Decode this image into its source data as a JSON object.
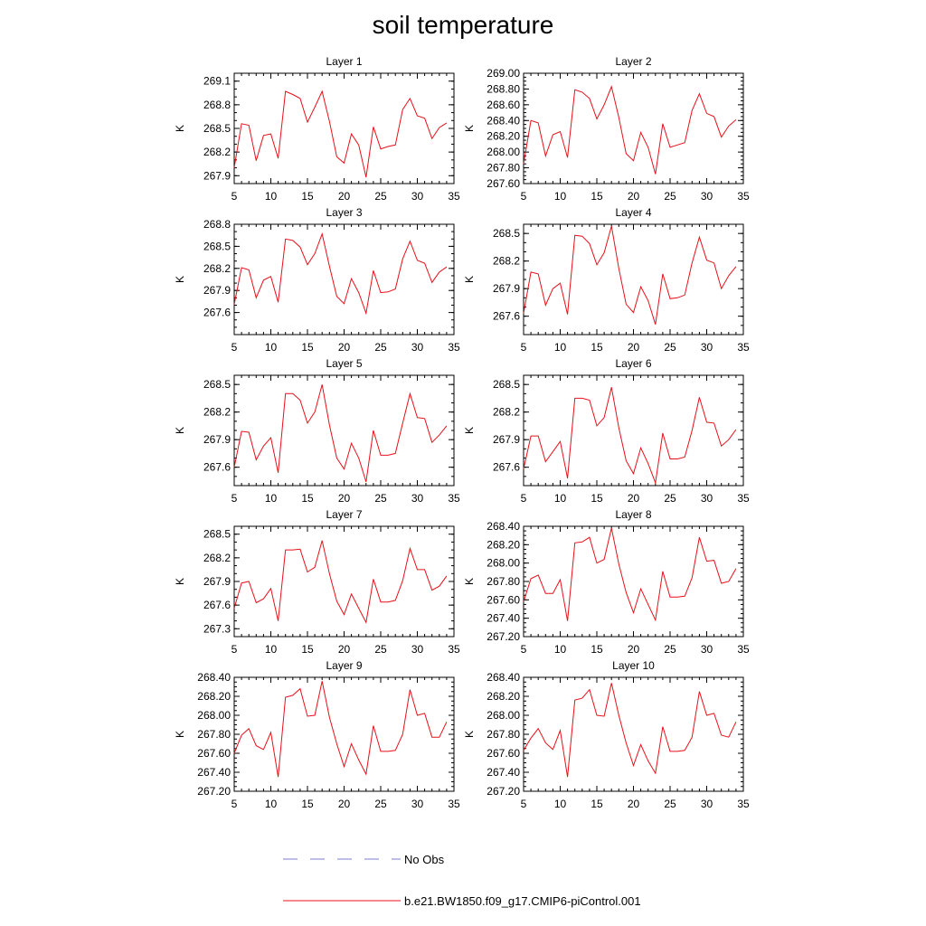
{
  "title": "soil temperature",
  "colors": {
    "model": "#e8101a",
    "obs": "#7b7fd0",
    "axis": "#000000"
  },
  "legend": [
    {
      "label": "No Obs",
      "style": "dashed",
      "color": "#7b7fd0"
    },
    {
      "label": "b.e21.BW1850.f09_g17.CMIP6-piControl.001",
      "style": "solid",
      "color": "#e8101a"
    }
  ],
  "chart_data": [
    {
      "type": "line",
      "title": "Layer 1",
      "xlabel": "",
      "ylabel": "K",
      "xlim": [
        5,
        35
      ],
      "ylim": [
        267.8,
        269.2
      ],
      "xticks": [
        "5",
        "10",
        "15",
        "20",
        "25",
        "30",
        "35"
      ],
      "yticks": [
        267.9,
        268.2,
        268.5,
        268.8,
        269.1
      ],
      "ytick_labels": [
        "267.9",
        "268.2",
        "268.5",
        "268.8",
        "269.1"
      ],
      "series": [
        {
          "x": [
            5,
            6,
            7,
            8,
            9,
            10,
            11,
            12,
            13,
            14,
            15,
            16,
            17,
            18,
            19,
            20,
            21,
            22,
            23,
            24,
            25,
            26,
            27,
            28,
            29,
            30,
            31,
            32,
            33,
            34
          ],
          "values": [
            268.0,
            268.56,
            268.54,
            268.09,
            268.41,
            268.43,
            268.12,
            268.97,
            268.93,
            268.88,
            268.58,
            268.77,
            268.97,
            268.59,
            268.14,
            268.06,
            268.43,
            268.29,
            267.88,
            268.52,
            268.24,
            268.27,
            268.29,
            268.74,
            268.88,
            268.66,
            268.63,
            268.37,
            268.51,
            268.57
          ]
        }
      ]
    },
    {
      "type": "line",
      "title": "Layer 2",
      "xlabel": "",
      "ylabel": "K",
      "xlim": [
        5,
        35
      ],
      "ylim": [
        267.6,
        269.0
      ],
      "xticks": [
        "5",
        "10",
        "15",
        "20",
        "25",
        "30",
        "35"
      ],
      "yticks": [
        267.6,
        267.8,
        268.0,
        268.2,
        268.4,
        268.6,
        268.8,
        269.0
      ],
      "ytick_labels": [
        "267.60",
        "267.80",
        "268.00",
        "268.20",
        "268.40",
        "268.60",
        "268.80",
        "269.00"
      ],
      "series": [
        {
          "x": [
            5,
            6,
            7,
            8,
            9,
            10,
            11,
            12,
            13,
            14,
            15,
            16,
            17,
            18,
            19,
            20,
            21,
            22,
            23,
            24,
            25,
            26,
            27,
            28,
            29,
            30,
            31,
            32,
            33,
            34
          ],
          "values": [
            267.85,
            268.4,
            268.37,
            267.95,
            268.22,
            268.26,
            267.93,
            268.79,
            268.76,
            268.68,
            268.42,
            268.6,
            268.83,
            268.44,
            267.98,
            267.89,
            268.25,
            268.06,
            267.72,
            268.36,
            268.06,
            268.09,
            268.12,
            268.53,
            268.74,
            268.49,
            268.45,
            268.19,
            268.33,
            268.41
          ]
        }
      ]
    },
    {
      "type": "line",
      "title": "Layer 3",
      "xlabel": "",
      "ylabel": "K",
      "xlim": [
        5,
        35
      ],
      "ylim": [
        267.3,
        268.8
      ],
      "xticks": [
        "5",
        "10",
        "15",
        "20",
        "25",
        "30",
        "35"
      ],
      "yticks": [
        267.6,
        267.9,
        268.2,
        268.5,
        268.8
      ],
      "ytick_labels": [
        "267.6",
        "267.9",
        "268.2",
        "268.5",
        "268.8"
      ],
      "series": [
        {
          "x": [
            5,
            6,
            7,
            8,
            9,
            10,
            11,
            12,
            13,
            14,
            15,
            16,
            17,
            18,
            19,
            20,
            21,
            22,
            23,
            24,
            25,
            26,
            27,
            28,
            29,
            30,
            31,
            32,
            33,
            34
          ],
          "values": [
            267.71,
            268.21,
            268.18,
            267.8,
            268.04,
            268.09,
            267.74,
            268.6,
            268.58,
            268.49,
            268.25,
            268.4,
            268.67,
            268.23,
            267.82,
            267.72,
            268.06,
            267.87,
            267.59,
            268.17,
            267.87,
            267.88,
            267.92,
            268.33,
            268.57,
            268.31,
            268.27,
            268.01,
            268.15,
            268.22
          ]
        }
      ]
    },
    {
      "type": "line",
      "title": "Layer 4",
      "xlabel": "",
      "ylabel": "K",
      "xlim": [
        5,
        35
      ],
      "ylim": [
        267.4,
        268.6
      ],
      "xticks": [
        "5",
        "10",
        "15",
        "20",
        "25",
        "30",
        "35"
      ],
      "yticks": [
        267.6,
        267.9,
        268.2,
        268.5
      ],
      "ytick_labels": [
        "267.6",
        "267.9",
        "268.2",
        "268.5"
      ],
      "series": [
        {
          "x": [
            5,
            6,
            7,
            8,
            9,
            10,
            11,
            12,
            13,
            14,
            15,
            16,
            17,
            18,
            19,
            20,
            21,
            22,
            23,
            24,
            25,
            26,
            27,
            28,
            29,
            30,
            31,
            32,
            33,
            34
          ],
          "values": [
            267.63,
            268.08,
            268.06,
            267.72,
            267.9,
            267.96,
            267.62,
            268.48,
            268.47,
            268.39,
            268.16,
            268.29,
            268.58,
            268.12,
            267.73,
            267.64,
            267.92,
            267.77,
            267.51,
            268.06,
            267.79,
            267.8,
            267.83,
            268.18,
            268.46,
            268.21,
            268.18,
            267.9,
            268.04,
            268.14
          ]
        }
      ]
    },
    {
      "type": "line",
      "title": "Layer 5",
      "xlabel": "",
      "ylabel": "K",
      "xlim": [
        5,
        35
      ],
      "ylim": [
        267.4,
        268.6
      ],
      "xticks": [
        "5",
        "10",
        "15",
        "20",
        "25",
        "30",
        "35"
      ],
      "yticks": [
        267.6,
        267.9,
        268.2,
        268.5
      ],
      "ytick_labels": [
        "267.6",
        "267.9",
        "268.2",
        "268.5"
      ],
      "series": [
        {
          "x": [
            5,
            6,
            7,
            8,
            9,
            10,
            11,
            12,
            13,
            14,
            15,
            16,
            17,
            18,
            19,
            20,
            21,
            22,
            23,
            24,
            25,
            26,
            27,
            28,
            29,
            30,
            31,
            32,
            33,
            34
          ],
          "values": [
            267.6,
            267.99,
            267.98,
            267.68,
            267.83,
            267.92,
            267.54,
            268.4,
            268.4,
            268.33,
            268.08,
            268.2,
            268.5,
            268.06,
            267.7,
            267.58,
            267.86,
            267.7,
            267.44,
            268.0,
            267.73,
            267.73,
            267.75,
            268.08,
            268.4,
            268.14,
            268.13,
            267.87,
            267.95,
            268.05
          ]
        }
      ]
    },
    {
      "type": "line",
      "title": "Layer 6",
      "xlabel": "",
      "ylabel": "K",
      "xlim": [
        5,
        35
      ],
      "ylim": [
        267.4,
        268.6
      ],
      "xticks": [
        "5",
        "10",
        "15",
        "20",
        "25",
        "30",
        "35"
      ],
      "yticks": [
        267.6,
        267.9,
        268.2,
        268.5
      ],
      "ytick_labels": [
        "267.6",
        "267.9",
        "268.2",
        "268.5"
      ],
      "series": [
        {
          "x": [
            5,
            6,
            7,
            8,
            9,
            10,
            11,
            12,
            13,
            14,
            15,
            16,
            17,
            18,
            19,
            20,
            21,
            22,
            23,
            24,
            25,
            26,
            27,
            28,
            29,
            30,
            31,
            32,
            33,
            34
          ],
          "values": [
            267.58,
            267.94,
            267.94,
            267.66,
            267.77,
            267.88,
            267.48,
            268.35,
            268.35,
            268.33,
            268.05,
            268.14,
            268.47,
            268.03,
            267.67,
            267.53,
            267.81,
            267.64,
            267.43,
            267.97,
            267.69,
            267.69,
            267.71,
            268.0,
            268.36,
            268.09,
            268.08,
            267.83,
            267.9,
            268.01
          ]
        }
      ]
    },
    {
      "type": "line",
      "title": "Layer 7",
      "xlabel": "",
      "ylabel": "K",
      "xlim": [
        5,
        35
      ],
      "ylim": [
        267.2,
        268.6
      ],
      "xticks": [
        "5",
        "10",
        "15",
        "20",
        "25",
        "30",
        "35"
      ],
      "yticks": [
        267.3,
        267.6,
        267.9,
        268.2,
        268.5
      ],
      "ytick_labels": [
        "267.3",
        "267.6",
        "267.9",
        "268.2",
        "268.5"
      ],
      "series": [
        {
          "x": [
            5,
            6,
            7,
            8,
            9,
            10,
            11,
            12,
            13,
            14,
            15,
            16,
            17,
            18,
            19,
            20,
            21,
            22,
            23,
            24,
            25,
            26,
            27,
            28,
            29,
            30,
            31,
            32,
            33,
            34
          ],
          "values": [
            267.56,
            267.88,
            267.9,
            267.63,
            267.68,
            267.81,
            267.4,
            268.3,
            268.3,
            268.31,
            268.02,
            268.08,
            268.42,
            268.0,
            267.65,
            267.48,
            267.74,
            267.56,
            267.38,
            267.93,
            267.64,
            267.64,
            267.66,
            267.91,
            268.32,
            268.05,
            268.05,
            267.79,
            267.84,
            267.97
          ]
        }
      ]
    },
    {
      "type": "line",
      "title": "Layer 8",
      "xlabel": "",
      "ylabel": "K",
      "xlim": [
        5,
        35
      ],
      "ylim": [
        267.2,
        268.4
      ],
      "xticks": [
        "5",
        "10",
        "15",
        "20",
        "25",
        "30",
        "35"
      ],
      "yticks": [
        267.2,
        267.4,
        267.6,
        267.8,
        268.0,
        268.2,
        268.4
      ],
      "ytick_labels": [
        "267.20",
        "267.40",
        "267.60",
        "267.80",
        "268.00",
        "268.20",
        "268.40"
      ],
      "series": [
        {
          "x": [
            5,
            6,
            7,
            8,
            9,
            10,
            11,
            12,
            13,
            14,
            15,
            16,
            17,
            18,
            19,
            20,
            21,
            22,
            23,
            24,
            25,
            26,
            27,
            28,
            29,
            30,
            31,
            32,
            33,
            34
          ],
          "values": [
            267.58,
            267.83,
            267.87,
            267.67,
            267.67,
            267.82,
            267.37,
            268.22,
            268.23,
            268.28,
            268.0,
            268.04,
            268.38,
            267.99,
            267.68,
            267.46,
            267.72,
            267.55,
            267.38,
            267.91,
            267.63,
            267.63,
            267.64,
            267.84,
            268.28,
            268.02,
            268.03,
            267.78,
            267.8,
            267.94
          ]
        }
      ]
    },
    {
      "type": "line",
      "title": "Layer 9",
      "xlabel": "",
      "ylabel": "K",
      "xlim": [
        5,
        35
      ],
      "ylim": [
        267.2,
        268.4
      ],
      "xticks": [
        "5",
        "10",
        "15",
        "20",
        "25",
        "30",
        "35"
      ],
      "yticks": [
        267.2,
        267.4,
        267.6,
        267.8,
        268.0,
        268.2,
        268.4
      ],
      "ytick_labels": [
        "267.20",
        "267.40",
        "267.60",
        "267.80",
        "268.00",
        "268.20",
        "268.40"
      ],
      "series": [
        {
          "x": [
            5,
            6,
            7,
            8,
            9,
            10,
            11,
            12,
            13,
            14,
            15,
            16,
            17,
            18,
            19,
            20,
            21,
            22,
            23,
            24,
            25,
            26,
            27,
            28,
            29,
            30,
            31,
            32,
            33,
            34
          ],
          "values": [
            267.6,
            267.79,
            267.86,
            267.68,
            267.64,
            267.82,
            267.35,
            268.19,
            268.21,
            268.28,
            267.99,
            268.0,
            268.36,
            267.98,
            267.7,
            267.46,
            267.7,
            267.53,
            267.38,
            267.89,
            267.62,
            267.62,
            267.63,
            267.8,
            268.27,
            268.0,
            268.02,
            267.77,
            267.77,
            267.93
          ]
        }
      ]
    },
    {
      "type": "line",
      "title": "Layer 10",
      "xlabel": "",
      "ylabel": "K",
      "xlim": [
        5,
        35
      ],
      "ylim": [
        267.2,
        268.4
      ],
      "xticks": [
        "5",
        "10",
        "15",
        "20",
        "25",
        "30",
        "35"
      ],
      "yticks": [
        267.2,
        267.4,
        267.6,
        267.8,
        268.0,
        268.2,
        268.4
      ],
      "ytick_labels": [
        "267.20",
        "267.40",
        "267.60",
        "267.80",
        "268.00",
        "268.20",
        "268.40"
      ],
      "series": [
        {
          "x": [
            5,
            6,
            7,
            8,
            9,
            10,
            11,
            12,
            13,
            14,
            15,
            16,
            17,
            18,
            19,
            20,
            21,
            22,
            23,
            24,
            25,
            26,
            27,
            28,
            29,
            30,
            31,
            32,
            33,
            34
          ],
          "values": [
            267.63,
            267.76,
            267.86,
            267.71,
            267.64,
            267.84,
            267.35,
            268.16,
            268.18,
            268.27,
            268.0,
            267.99,
            268.34,
            268.0,
            267.71,
            267.47,
            267.69,
            267.52,
            267.39,
            267.88,
            267.62,
            267.62,
            267.63,
            267.77,
            268.25,
            268.0,
            268.02,
            267.79,
            267.77,
            267.93
          ]
        }
      ]
    }
  ]
}
